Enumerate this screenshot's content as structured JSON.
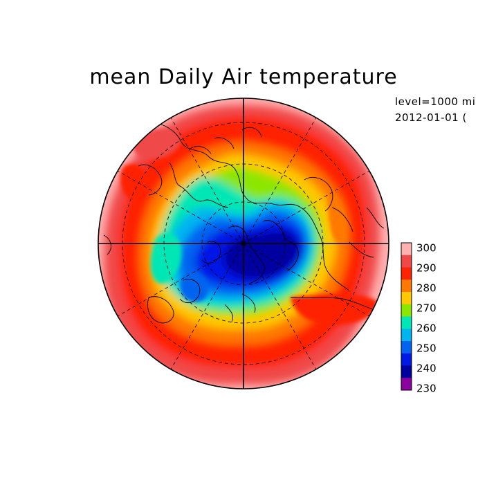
{
  "title": "mean Daily Air temperature",
  "meta": {
    "level": "level=1000 mi",
    "date": "2012-01-01 ("
  },
  "legend": {
    "labels": [
      "300",
      "290",
      "280",
      "270",
      "260",
      "250",
      "240",
      "230"
    ],
    "colors": [
      "#ffb0b0",
      "#f04848",
      "#ff2400",
      "#ff7800",
      "#ffc800",
      "#8ce600",
      "#00e6b4",
      "#00b4f0",
      "#0064f0",
      "#0018e6",
      "#0000a0",
      "#8c00a0"
    ]
  },
  "map": {
    "projection": "north-polar-stereographic",
    "center_lat": 90
  }
}
